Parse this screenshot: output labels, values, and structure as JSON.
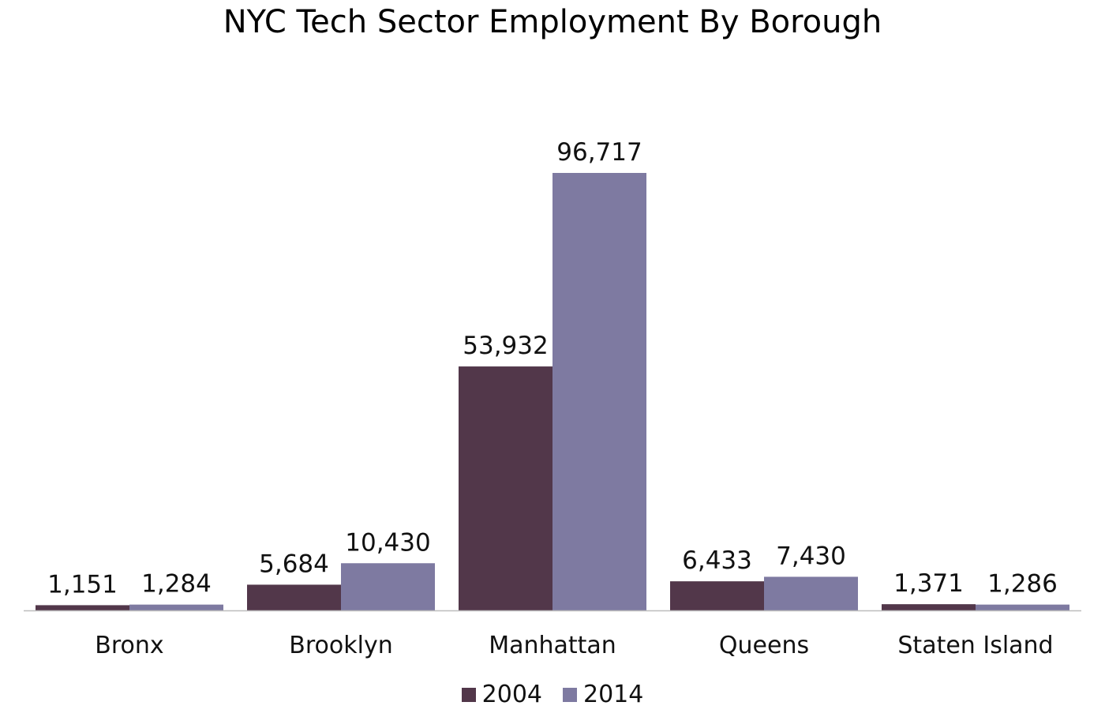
{
  "chart_data": {
    "type": "bar",
    "title": "NYC Tech Sector Employment By Borough",
    "categories": [
      "Bronx",
      "Brooklyn",
      "Manhattan",
      "Queens",
      "Staten Island"
    ],
    "series": [
      {
        "name": "2004",
        "color": "#52374A",
        "values": [
          1151,
          5684,
          53932,
          6433,
          1371
        ],
        "labels": [
          "1,151",
          "5,684",
          "53,932",
          "6,433",
          "1,371"
        ]
      },
      {
        "name": "2014",
        "color": "#7E7AA1",
        "values": [
          1284,
          10430,
          96717,
          7430,
          1286
        ],
        "labels": [
          "1,284",
          "10,430",
          "96,717",
          "7,430",
          "1,286"
        ]
      }
    ],
    "ylim": [
      0,
      96717
    ],
    "gridlines": false,
    "legend_position": "bottom",
    "data_labels": true
  }
}
